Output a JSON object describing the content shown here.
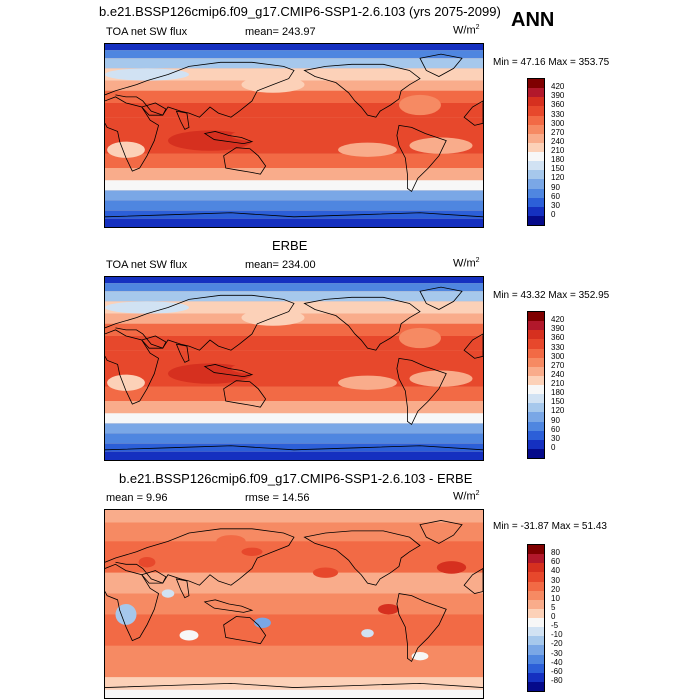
{
  "header": {
    "model_title": "b.e21.BSSP126cmip6.f09_g17.CMIP6-SSP1-2.6.103 (yrs 2075-2099)",
    "season": "ANN"
  },
  "panels": [
    {
      "subtitle": "",
      "left_label": "TOA net SW flux",
      "center_label": "mean= 243.97",
      "units": "W/m",
      "units_sup": "2",
      "minmax": "Min =  47.16 Max = 353.75",
      "field": "model"
    },
    {
      "subtitle": "ERBE",
      "left_label": "TOA net SW flux",
      "center_label": "mean= 234.00",
      "units": "W/m",
      "units_sup": "2",
      "minmax": "Min =  43.32 Max = 352.95",
      "field": "obs"
    },
    {
      "subtitle": "b.e21.BSSP126cmip6.f09_g17.CMIP6-SSP1-2.6.103 - ERBE",
      "left_label": "mean =   9.96",
      "center_label": "rmse =  14.56",
      "units": "W/m",
      "units_sup": "2",
      "minmax": "Min = -31.87 Max =  51.43",
      "field": "diff"
    }
  ],
  "colorbars": {
    "abs": {
      "levels": [
        "420",
        "390",
        "360",
        "330",
        "300",
        "270",
        "240",
        "210",
        "180",
        "150",
        "120",
        "90",
        "60",
        "30",
        "0"
      ],
      "colors": [
        "#7f0000",
        "#b2182b",
        "#d6301f",
        "#e7482c",
        "#f26a45",
        "#f68a63",
        "#f9ac8b",
        "#fcd1b8",
        "#f7f7f7",
        "#d1e2f3",
        "#a6c8ec",
        "#7aa7e6",
        "#4f86e0",
        "#2c5fd8",
        "#1530c0",
        "#050a8a"
      ]
    },
    "diff": {
      "levels": [
        "80",
        "60",
        "40",
        "30",
        "20",
        "10",
        "5",
        "0",
        "-5",
        "-10",
        "-20",
        "-30",
        "-40",
        "-60",
        "-80"
      ],
      "colors": [
        "#7f0000",
        "#b2182b",
        "#d6301f",
        "#e7482c",
        "#f26a45",
        "#f68a63",
        "#f9ac8b",
        "#fcd1b8",
        "#f7f7f7",
        "#d1e2f3",
        "#a6c8ec",
        "#7aa7e6",
        "#4f86e0",
        "#2c5fd8",
        "#1530c0",
        "#050a8a"
      ]
    }
  }
}
